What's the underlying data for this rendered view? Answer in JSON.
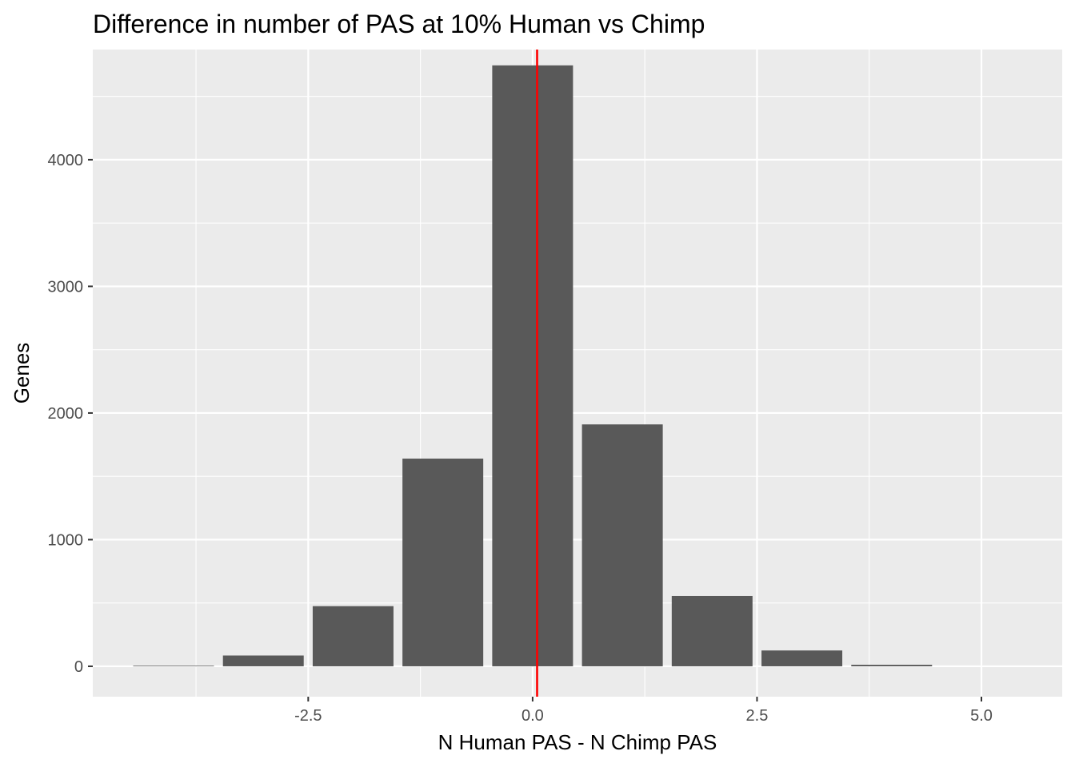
{
  "chart_data": {
    "type": "bar",
    "title": "Difference in number of PAS at 10% Human vs Chimp",
    "xlabel": "N Human PAS - N Chimp PAS",
    "ylabel": "Genes",
    "x": [
      -4,
      -3,
      -2,
      -1,
      0,
      1,
      2,
      3,
      4
    ],
    "values": [
      5,
      85,
      475,
      1640,
      4745,
      1910,
      555,
      125,
      12
    ],
    "xlim": [
      -4.9,
      5.9
    ],
    "ylim": [
      -240,
      4870
    ],
    "x_ticks": [
      -2.5,
      0.0,
      2.5,
      5.0
    ],
    "x_tick_labels": [
      "-2.5",
      "0.0",
      "2.5",
      "5.0"
    ],
    "y_ticks": [
      0,
      1000,
      2000,
      3000,
      4000
    ],
    "y_tick_labels": [
      "0",
      "1000",
      "2000",
      "3000",
      "4000"
    ],
    "vline_x": 0.05,
    "grid": true,
    "legend": "none",
    "colors": {
      "bar": "#595959",
      "panel": "#ebebeb",
      "grid": "#ffffff",
      "vline": "#ff0000"
    }
  }
}
